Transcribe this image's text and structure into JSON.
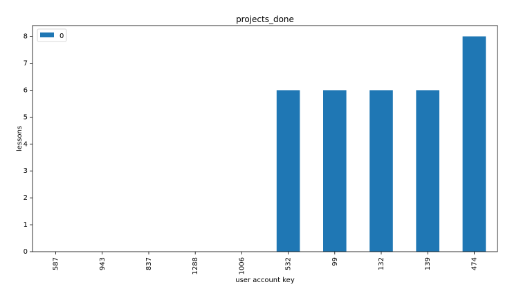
{
  "chart_data": {
    "type": "bar",
    "title": "projects_done",
    "xlabel": "user account key",
    "ylabel": "lessons",
    "categories": [
      "587",
      "943",
      "837",
      "1288",
      "1006",
      "532",
      "99",
      "132",
      "139",
      "474"
    ],
    "series": [
      {
        "name": "0",
        "values": [
          0,
          0,
          0,
          0,
          0,
          6,
          6,
          6,
          6,
          8
        ],
        "color": "#1f77b4"
      }
    ],
    "ylim": [
      0,
      8.4
    ],
    "yticks": [
      0,
      1,
      2,
      3,
      4,
      5,
      6,
      7,
      8
    ],
    "grid": false,
    "legend": "top-left"
  }
}
